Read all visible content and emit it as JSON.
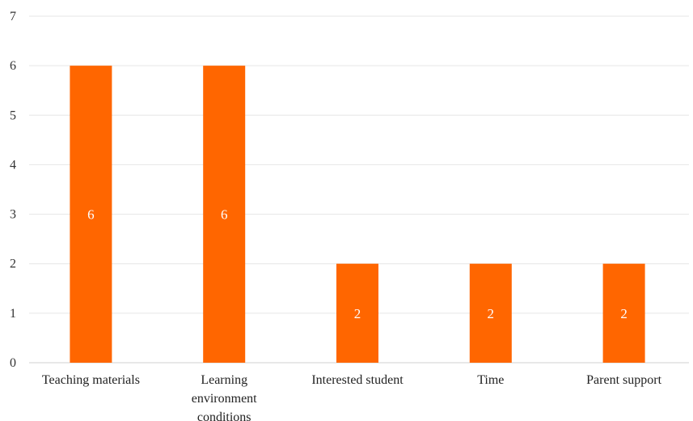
{
  "chart_data": {
    "type": "bar",
    "categories": [
      [
        "Teaching materials"
      ],
      [
        "Learning",
        "environment",
        "conditions"
      ],
      [
        "Interested student"
      ],
      [
        "Time"
      ],
      [
        "Parent support"
      ]
    ],
    "values": [
      6,
      6,
      2,
      2,
      2
    ],
    "data_labels": [
      "6",
      "6",
      "2",
      "2",
      "2"
    ],
    "yticks": [
      "0",
      "1",
      "2",
      "3",
      "4",
      "5",
      "6",
      "7"
    ],
    "ylim": [
      0,
      7
    ],
    "grid": true,
    "bar_color": "#FF6600",
    "title": "",
    "xlabel": "",
    "ylabel": ""
  }
}
